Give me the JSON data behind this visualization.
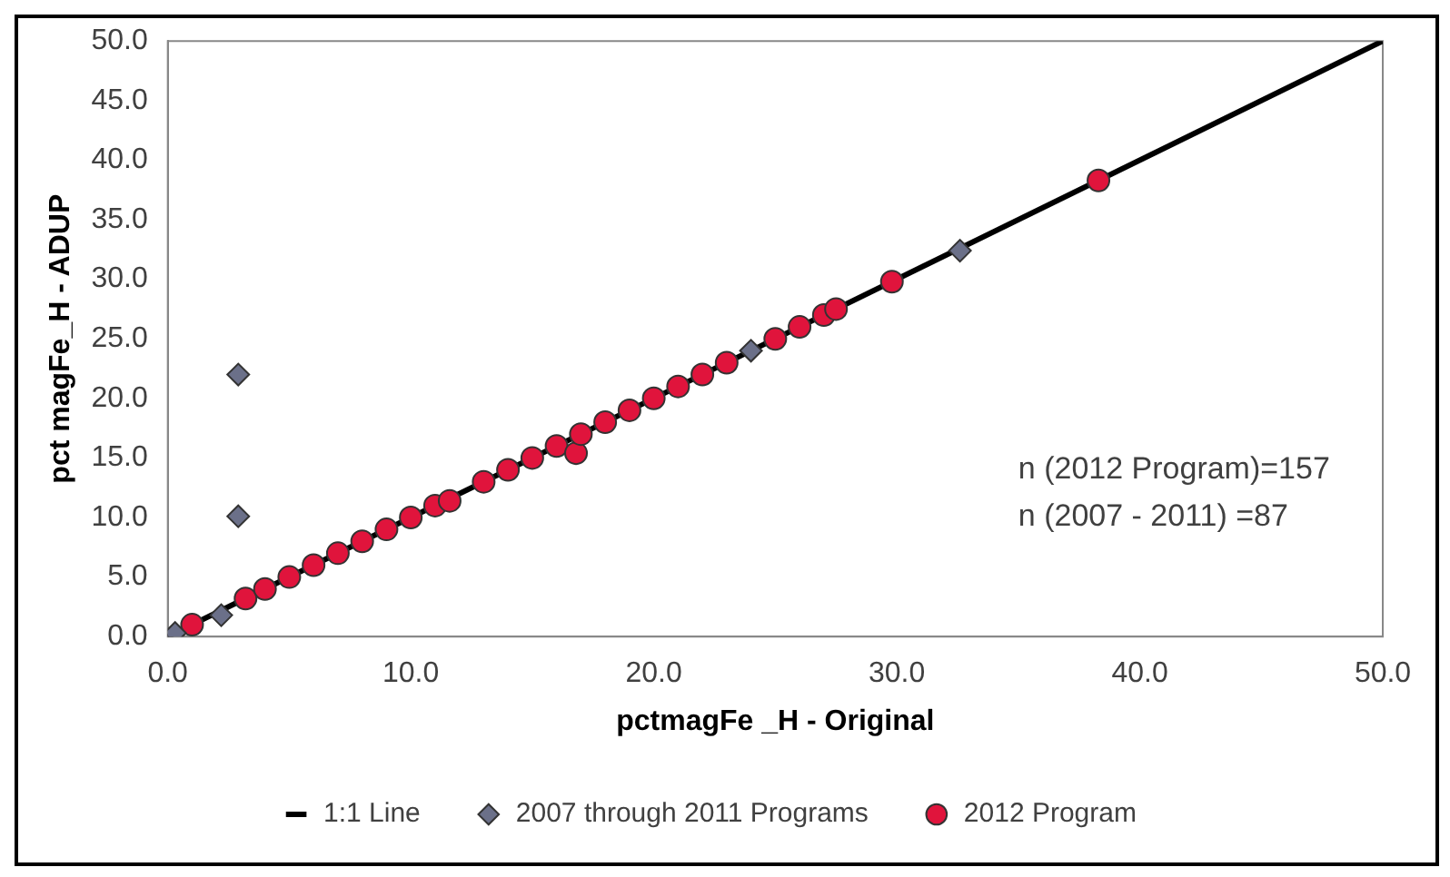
{
  "chart_data": {
    "type": "scatter",
    "xlabel": "pctmagFe _H - Original",
    "ylabel": "pct magFe_H - ADUP",
    "xlim": [
      0,
      50
    ],
    "xticks": [
      {
        "value": 0,
        "label": "0.0"
      },
      {
        "value": 10,
        "label": "10.0"
      },
      {
        "value": 20,
        "label": "20.0"
      },
      {
        "value": 30,
        "label": "30.0"
      },
      {
        "value": 40,
        "label": "40.0"
      },
      {
        "value": 50,
        "label": "50.0"
      }
    ],
    "ylim": [
      0,
      50
    ],
    "yticks": [
      {
        "value": 0,
        "label": "0.0"
      },
      {
        "value": 5,
        "label": "5.0"
      },
      {
        "value": 10,
        "label": "10.0"
      },
      {
        "value": 15,
        "label": "15.0"
      },
      {
        "value": 20,
        "label": "20.0"
      },
      {
        "value": 25,
        "label": "25.0"
      },
      {
        "value": 30,
        "label": "30.0"
      },
      {
        "value": 35,
        "label": "35.0"
      },
      {
        "value": 40,
        "label": "40.0"
      },
      {
        "value": 45,
        "label": "45.0"
      },
      {
        "value": 50,
        "label": "50.0"
      }
    ],
    "grid": false,
    "legend": "bottom",
    "annotations": [
      "n (2012 Program)=157",
      "n (2007 - 2011) =87"
    ],
    "series": [
      {
        "name": "1:1 Line",
        "type": "line",
        "color": "#000000",
        "marker": "none",
        "x": [
          0,
          50
        ],
        "values": [
          0,
          50
        ]
      },
      {
        "name": "2007 through 2011 Programs",
        "marker": "diamond",
        "color": "#6b7089",
        "x": [
          2.9,
          2.9,
          2.2,
          0.3,
          32.6,
          24
        ],
        "values": [
          22,
          10.1,
          1.8,
          0.3,
          32.4,
          24
        ]
      },
      {
        "name": "2012 Program",
        "marker": "circle",
        "color": "#e0143c",
        "x": [
          1,
          3.2,
          4,
          5,
          6,
          7,
          8,
          9,
          10,
          11,
          11.6,
          13,
          14,
          15,
          16,
          16.8,
          17,
          18,
          19,
          20,
          21,
          22,
          23,
          25,
          26,
          27,
          27.5,
          29.8,
          38.3
        ],
        "values": [
          1,
          3.2,
          4,
          5,
          6,
          7,
          8,
          9,
          10,
          11,
          11.4,
          13,
          14,
          15,
          16,
          15.4,
          17,
          18,
          19,
          20,
          21,
          22,
          23,
          25,
          26,
          27,
          27.5,
          29.8,
          38.3
        ]
      }
    ]
  }
}
